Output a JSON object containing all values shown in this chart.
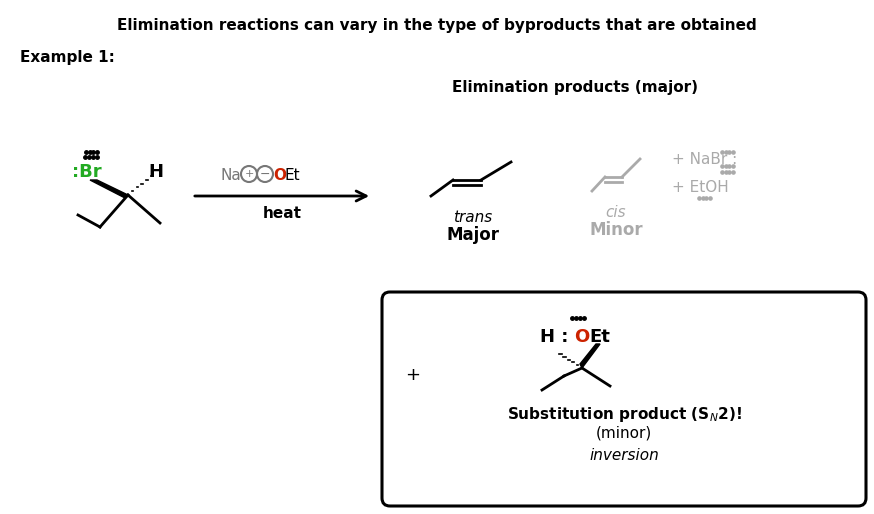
{
  "title": "Elimination reactions can vary in the type of byproducts that are obtained",
  "example_label": "Example 1:",
  "elim_products_label": "Elimination products (major)",
  "heat_label": "heat",
  "trans_label": "trans",
  "cis_label": "cis",
  "major_label": "Major",
  "minor_label": "Minor",
  "nabr_label": "+ NaBr :",
  "etoh_label": "+ EtOH",
  "sub_line1": "Substitution product (S",
  "sub_line2": "(minor)",
  "sub_line3": "inversion",
  "plus_sign": "+",
  "bg_color": "#ffffff",
  "black": "#000000",
  "gray": "#aaaaaa",
  "green": "#22aa22",
  "red": "#cc2200",
  "dark_gray": "#777777",
  "figw": 8.74,
  "figh": 5.14,
  "dpi": 100
}
